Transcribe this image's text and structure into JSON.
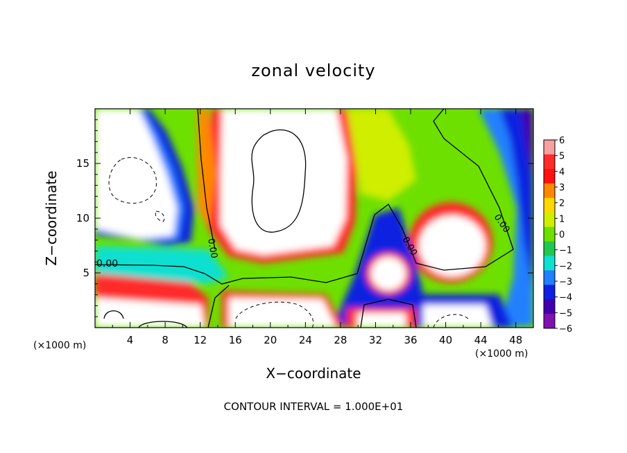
{
  "chart_data": {
    "type": "heatmap",
    "title": "zonal velocity",
    "xlabel": "X−coordinate",
    "ylabel": "Z−coordinate",
    "x_unit_left": "(×1000 m)",
    "x_unit_right": "(×1000 m)",
    "xlim": [
      0,
      50
    ],
    "ylim": [
      0,
      20
    ],
    "x_ticks": [
      "4",
      "8",
      "12",
      "16",
      "20",
      "24",
      "28",
      "32",
      "36",
      "40",
      "44",
      "48"
    ],
    "y_ticks": [
      "5",
      "10",
      "15"
    ],
    "colorbar": {
      "labels": [
        "6",
        "5",
        "4",
        "3",
        "2",
        "1",
        "0",
        "−1",
        "−2",
        "−3",
        "−4",
        "−5",
        "−6"
      ],
      "colors": [
        "#f6a0a0",
        "#ff2a2a",
        "#ff1010",
        "#ff8800",
        "#ffd800",
        "#cfee00",
        "#6ee000",
        "#20c850",
        "#10e0d0",
        "#2080ff",
        "#1020e0",
        "#4000b0",
        "#8010b0"
      ]
    },
    "contour_labels": [
      "0.00",
      "0.00",
      "0.00",
      "0.00"
    ],
    "contour_interval": "CONTOUR INTERVAL = 1.000E+01"
  }
}
